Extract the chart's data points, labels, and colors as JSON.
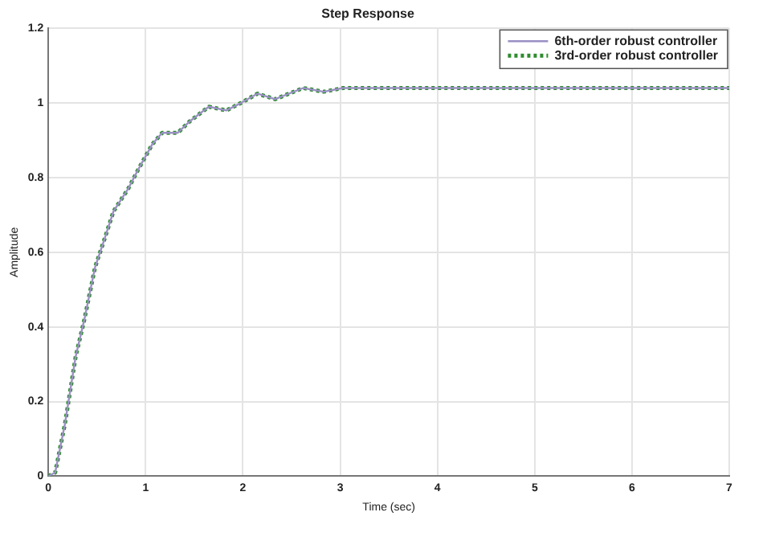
{
  "chart_data": {
    "type": "line",
    "title": "Step Response",
    "xlabel": "Time (sec)",
    "ylabel": "Amplitude",
    "x": [
      0,
      0.07,
      0.17,
      0.28,
      0.37,
      0.48,
      0.57,
      0.67,
      0.82,
      0.92,
      1.07,
      1.17,
      1.33,
      1.45,
      1.65,
      1.83,
      1.98,
      2.15,
      2.33,
      2.62,
      2.83,
      3.03,
      3.5,
      4,
      4.5,
      5,
      5.5,
      6,
      6.5,
      7
    ],
    "series": [
      {
        "name": "6th-order robust controller",
        "color": "#9a90c4",
        "line_style": "solid",
        "values": [
          0,
          0.01,
          0.14,
          0.32,
          0.42,
          0.56,
          0.63,
          0.71,
          0.77,
          0.82,
          0.89,
          0.92,
          0.92,
          0.95,
          0.99,
          0.98,
          1.0,
          1.025,
          1.01,
          1.04,
          1.03,
          1.04,
          1.04,
          1.04,
          1.04,
          1.04,
          1.04,
          1.04,
          1.04,
          1.04
        ]
      },
      {
        "name": "3rd-order robust controller",
        "color": "#2e8b2e",
        "line_style": "dotted",
        "values": [
          0,
          0.01,
          0.14,
          0.32,
          0.42,
          0.56,
          0.63,
          0.71,
          0.77,
          0.82,
          0.89,
          0.92,
          0.92,
          0.95,
          0.99,
          0.98,
          1.0,
          1.025,
          1.01,
          1.04,
          1.03,
          1.04,
          1.04,
          1.04,
          1.04,
          1.04,
          1.04,
          1.04,
          1.04,
          1.04
        ]
      }
    ],
    "xlim": [
      0,
      7
    ],
    "xticks": [
      0,
      1,
      2,
      3,
      4,
      5,
      6,
      7
    ],
    "ylim": [
      0,
      1.2
    ],
    "yticks": [
      0,
      0.2,
      0.4,
      0.6,
      0.8,
      1,
      1.2
    ],
    "grid": true,
    "legend": "top right",
    "marker": "none"
  }
}
